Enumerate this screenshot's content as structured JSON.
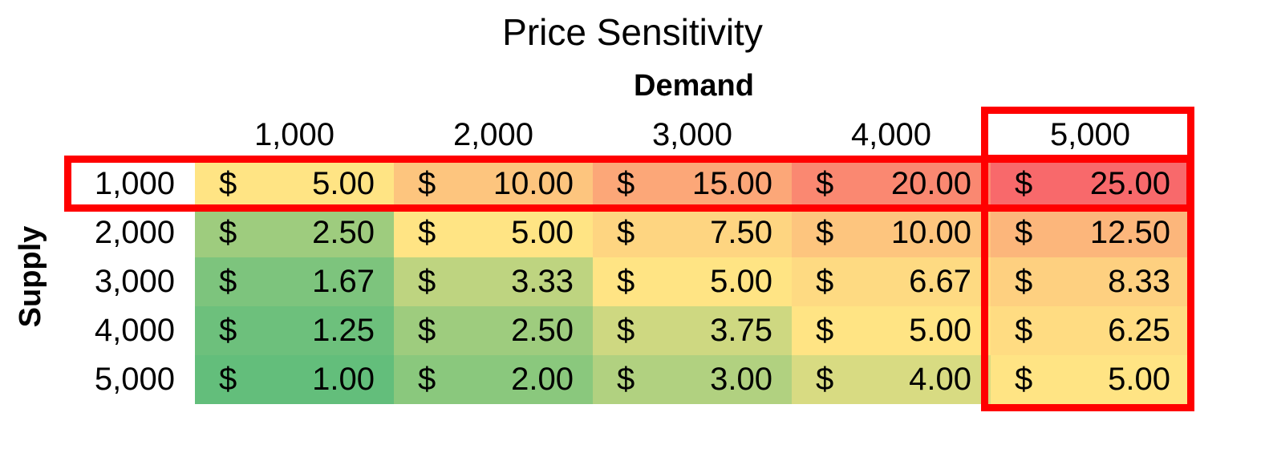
{
  "chart_data": {
    "type": "heatmap",
    "title": "Price Sensitivity",
    "xlabel": "Demand",
    "ylabel": "Supply",
    "x_categories": [
      "1,000",
      "2,000",
      "3,000",
      "4,000",
      "5,000"
    ],
    "y_categories": [
      "1,000",
      "2,000",
      "3,000",
      "4,000",
      "5,000"
    ],
    "currency_symbol": "$",
    "values": [
      [
        "5.00",
        "10.00",
        "15.00",
        "20.00",
        "25.00"
      ],
      [
        "2.50",
        "5.00",
        "7.50",
        "10.00",
        "12.50"
      ],
      [
        "1.67",
        "3.33",
        "5.00",
        "6.67",
        "8.33"
      ],
      [
        "1.25",
        "2.50",
        "3.75",
        "5.00",
        "6.25"
      ],
      [
        "1.00",
        "2.00",
        "3.00",
        "4.00",
        "5.00"
      ]
    ],
    "color_scale": {
      "low": "#63be7b",
      "mid": "#ffe484",
      "high": "#f8696b",
      "mid_value": 5.0
    },
    "highlights": {
      "color": "#ff0000",
      "row": "1,000",
      "column": "5,000"
    }
  }
}
